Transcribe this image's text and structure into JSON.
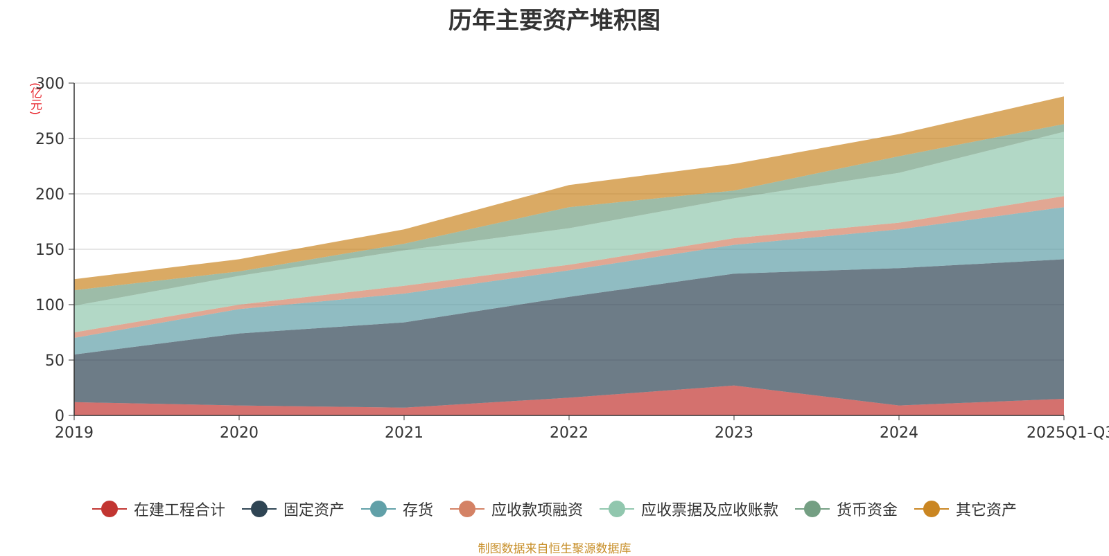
{
  "chart_data": {
    "type": "area",
    "stacked": true,
    "title": "历年主要资产堆积图",
    "unit_label": "(亿元)",
    "xlabel": "",
    "ylabel": "(亿元)",
    "categories": [
      "2019",
      "2020",
      "2021",
      "2022",
      "2023",
      "2024",
      "2025Q1-Q3"
    ],
    "ylim": [
      0,
      300
    ],
    "yticks": [
      0,
      50,
      100,
      150,
      200,
      250,
      300
    ],
    "grid": true,
    "legend_position": "bottom",
    "series": [
      {
        "name": "在建工程合计",
        "color": "#c23531",
        "values": [
          12,
          9,
          7,
          16,
          27,
          9,
          15
        ]
      },
      {
        "name": "固定资产",
        "color": "#2f4554",
        "values": [
          43,
          65,
          77,
          91,
          101,
          124,
          126
        ]
      },
      {
        "name": "存货",
        "color": "#61a0a8",
        "values": [
          15,
          22,
          26,
          24,
          26,
          35,
          47
        ]
      },
      {
        "name": "应收款项融资",
        "color": "#d48265",
        "values": [
          5,
          4,
          7,
          5,
          6,
          6,
          10
        ]
      },
      {
        "name": "应收票据及应收账款",
        "color": "#91c7ae",
        "values": [
          24,
          26,
          32,
          33,
          36,
          45,
          58
        ]
      },
      {
        "name": "货币资金",
        "color": "#749f83",
        "values": [
          14,
          4,
          6,
          19,
          7,
          15,
          7
        ]
      },
      {
        "name": "其它资产",
        "color": "#ca8622",
        "values": [
          10,
          11,
          13,
          20,
          24,
          20,
          25
        ]
      }
    ]
  },
  "footer": {
    "source": "制图数据来自恒生聚源数据库"
  }
}
